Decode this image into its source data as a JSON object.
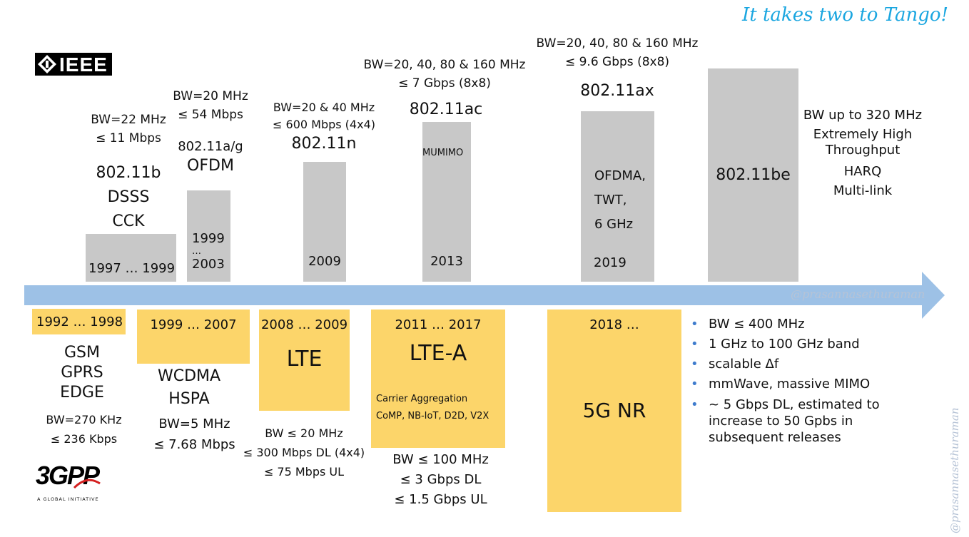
{
  "title": "It takes two to Tango!",
  "watermark": "@prasannasethuraman",
  "logos": {
    "ieee": "IEEE",
    "threegpp": "3GPP",
    "threegpp_tagline": "A GLOBAL INITIATIVE"
  },
  "colors": {
    "arrow": "#9dc1e6",
    "bar_gray": "#c8c8c8",
    "box_yellow": "#fcd56a",
    "title": "#1aa6e0",
    "bullet": "#3f7ccd"
  },
  "wifi": [
    {
      "spec": [
        "BW=22 MHz",
        "≤ 11 Mbps"
      ],
      "name": "802.11b",
      "features": [
        "DSSS",
        "CCK"
      ],
      "years": "1997 … 1999"
    },
    {
      "spec": [
        "BW=20 MHz",
        "≤ 54 Mbps"
      ],
      "name": "802.11a/g",
      "features": [
        "OFDM"
      ],
      "years": [
        "1999",
        "…",
        "2003"
      ]
    },
    {
      "spec": [
        "BW=20 & 40 MHz",
        "≤ 600 Mbps (4x4)"
      ],
      "name": "802.11n",
      "years": "2009"
    },
    {
      "spec": [
        "BW=20, 40, 80 & 160 MHz",
        "≤ 7 Gbps (8x8)"
      ],
      "name": "802.11ac",
      "inner": "MUMIMO",
      "years": "2013"
    },
    {
      "spec": [
        "BW=20, 40, 80 & 160 MHz",
        "≤ 9.6 Gbps (8x8)"
      ],
      "name": "802.11ax",
      "inner": [
        "OFDMA,",
        "TWT,",
        "6 GHz"
      ],
      "years": "2019"
    },
    {
      "name": "802.11be",
      "features": [
        "BW up to 320 MHz",
        "Extremely High",
        "Throughput",
        "HARQ",
        "Multi-link"
      ]
    }
  ],
  "cellular": [
    {
      "years": "1992 … 1998",
      "techs": [
        "GSM",
        "GPRS",
        "EDGE"
      ],
      "specs": [
        "BW=270 KHz",
        "≤ 236 Kbps"
      ]
    },
    {
      "years": "1999 … 2007",
      "techs": [
        "WCDMA",
        "HSPA"
      ],
      "specs": [
        "BW=5 MHz",
        "≤ 7.68 Mbps"
      ]
    },
    {
      "years": "2008 … 2009",
      "name": "LTE",
      "specs": [
        "BW ≤ 20 MHz",
        "≤ 300 Mbps DL (4x4)",
        "≤ 75 Mbps UL"
      ]
    },
    {
      "years": "2011 … 2017",
      "name": "LTE-A",
      "features": [
        "Carrier Aggregation",
        "CoMP, NB-IoT, D2D, V2X"
      ],
      "specs": [
        "BW ≤ 100 MHz",
        "≤ 3 Gbps DL",
        "≤ 1.5 Gbps UL"
      ]
    },
    {
      "years": "2018 …",
      "name": "5G NR",
      "bullets": [
        "BW ≤ 400 MHz",
        "1 GHz to 100 GHz band",
        "scalable Δf",
        "mmWave, massive MIMO",
        "~ 5 Gbps DL, estimated to increase to 50 Gpbs in subsequent releases"
      ]
    }
  ]
}
